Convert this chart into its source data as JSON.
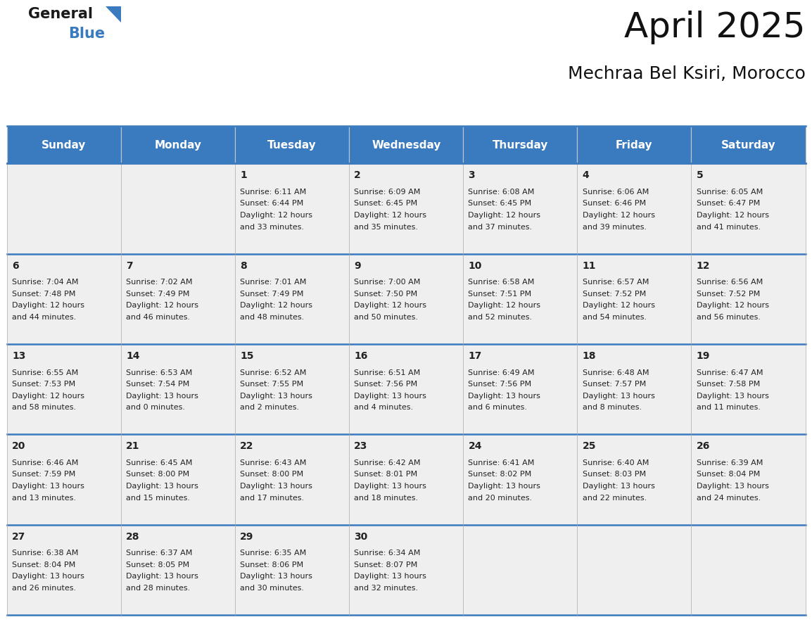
{
  "title": "April 2025",
  "subtitle": "Mechraa Bel Ksiri, Morocco",
  "header_bg_color": "#3a7abf",
  "header_text_color": "#ffffff",
  "cell_bg_color": "#efefef",
  "border_color": "#3a7abf",
  "text_color": "#222222",
  "days_of_week": [
    "Sunday",
    "Monday",
    "Tuesday",
    "Wednesday",
    "Thursday",
    "Friday",
    "Saturday"
  ],
  "calendar_data": [
    [
      null,
      null,
      {
        "day": 1,
        "sunrise": "6:11 AM",
        "sunset": "6:44 PM",
        "daylight": "12 hours and 33 minutes."
      },
      {
        "day": 2,
        "sunrise": "6:09 AM",
        "sunset": "6:45 PM",
        "daylight": "12 hours and 35 minutes."
      },
      {
        "day": 3,
        "sunrise": "6:08 AM",
        "sunset": "6:45 PM",
        "daylight": "12 hours and 37 minutes."
      },
      {
        "day": 4,
        "sunrise": "6:06 AM",
        "sunset": "6:46 PM",
        "daylight": "12 hours and 39 minutes."
      },
      {
        "day": 5,
        "sunrise": "6:05 AM",
        "sunset": "6:47 PM",
        "daylight": "12 hours and 41 minutes."
      }
    ],
    [
      {
        "day": 6,
        "sunrise": "7:04 AM",
        "sunset": "7:48 PM",
        "daylight": "12 hours and 44 minutes."
      },
      {
        "day": 7,
        "sunrise": "7:02 AM",
        "sunset": "7:49 PM",
        "daylight": "12 hours and 46 minutes."
      },
      {
        "day": 8,
        "sunrise": "7:01 AM",
        "sunset": "7:49 PM",
        "daylight": "12 hours and 48 minutes."
      },
      {
        "day": 9,
        "sunrise": "7:00 AM",
        "sunset": "7:50 PM",
        "daylight": "12 hours and 50 minutes."
      },
      {
        "day": 10,
        "sunrise": "6:58 AM",
        "sunset": "7:51 PM",
        "daylight": "12 hours and 52 minutes."
      },
      {
        "day": 11,
        "sunrise": "6:57 AM",
        "sunset": "7:52 PM",
        "daylight": "12 hours and 54 minutes."
      },
      {
        "day": 12,
        "sunrise": "6:56 AM",
        "sunset": "7:52 PM",
        "daylight": "12 hours and 56 minutes."
      }
    ],
    [
      {
        "day": 13,
        "sunrise": "6:55 AM",
        "sunset": "7:53 PM",
        "daylight": "12 hours and 58 minutes."
      },
      {
        "day": 14,
        "sunrise": "6:53 AM",
        "sunset": "7:54 PM",
        "daylight": "13 hours and 0 minutes."
      },
      {
        "day": 15,
        "sunrise": "6:52 AM",
        "sunset": "7:55 PM",
        "daylight": "13 hours and 2 minutes."
      },
      {
        "day": 16,
        "sunrise": "6:51 AM",
        "sunset": "7:56 PM",
        "daylight": "13 hours and 4 minutes."
      },
      {
        "day": 17,
        "sunrise": "6:49 AM",
        "sunset": "7:56 PM",
        "daylight": "13 hours and 6 minutes."
      },
      {
        "day": 18,
        "sunrise": "6:48 AM",
        "sunset": "7:57 PM",
        "daylight": "13 hours and 8 minutes."
      },
      {
        "day": 19,
        "sunrise": "6:47 AM",
        "sunset": "7:58 PM",
        "daylight": "13 hours and 11 minutes."
      }
    ],
    [
      {
        "day": 20,
        "sunrise": "6:46 AM",
        "sunset": "7:59 PM",
        "daylight": "13 hours and 13 minutes."
      },
      {
        "day": 21,
        "sunrise": "6:45 AM",
        "sunset": "8:00 PM",
        "daylight": "13 hours and 15 minutes."
      },
      {
        "day": 22,
        "sunrise": "6:43 AM",
        "sunset": "8:00 PM",
        "daylight": "13 hours and 17 minutes."
      },
      {
        "day": 23,
        "sunrise": "6:42 AM",
        "sunset": "8:01 PM",
        "daylight": "13 hours and 18 minutes."
      },
      {
        "day": 24,
        "sunrise": "6:41 AM",
        "sunset": "8:02 PM",
        "daylight": "13 hours and 20 minutes."
      },
      {
        "day": 25,
        "sunrise": "6:40 AM",
        "sunset": "8:03 PM",
        "daylight": "13 hours and 22 minutes."
      },
      {
        "day": 26,
        "sunrise": "6:39 AM",
        "sunset": "8:04 PM",
        "daylight": "13 hours and 24 minutes."
      }
    ],
    [
      {
        "day": 27,
        "sunrise": "6:38 AM",
        "sunset": "8:04 PM",
        "daylight": "13 hours and 26 minutes."
      },
      {
        "day": 28,
        "sunrise": "6:37 AM",
        "sunset": "8:05 PM",
        "daylight": "13 hours and 28 minutes."
      },
      {
        "day": 29,
        "sunrise": "6:35 AM",
        "sunset": "8:06 PM",
        "daylight": "13 hours and 30 minutes."
      },
      {
        "day": 30,
        "sunrise": "6:34 AM",
        "sunset": "8:07 PM",
        "daylight": "13 hours and 32 minutes."
      },
      null,
      null,
      null
    ]
  ],
  "logo_general_color": "#1a1a1a",
  "logo_blue_color": "#3a7abf",
  "title_fontsize": 36,
  "subtitle_fontsize": 18,
  "header_fontsize": 11,
  "day_num_fontsize": 10,
  "cell_text_fontsize": 8
}
